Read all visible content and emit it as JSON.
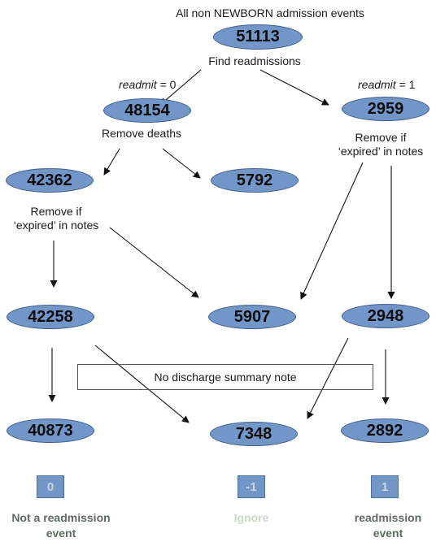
{
  "top": {
    "title": "All non NEWBORN admission events",
    "find_readmissions": "Find readmissions",
    "readmit_word": "readmit",
    "readmit0_value": " = 0",
    "readmit1_value": " = 1",
    "remove_deaths": "Remove deaths",
    "remove_expired_line1": "Remove if",
    "remove_expired_line2": "‘expired’ in notes"
  },
  "nodes": {
    "all": "51113",
    "r0": "48154",
    "r1": "2959",
    "alive": "42362",
    "dead": "5792",
    "left_mid": "42258",
    "center_mid": "5907",
    "right_mid": "2948",
    "left_bottom": "40873",
    "center_bottom": "7348",
    "right_bottom": "2892"
  },
  "box_label": "No discharge summary note",
  "categories": [
    {
      "badge": "0",
      "label_line1": "Not a readmission",
      "label_line2": "event",
      "color": "#5e6b5e"
    },
    {
      "badge": "-1",
      "label_line1": "Ignore",
      "label_line2": "",
      "color": "#c9d7c5"
    },
    {
      "badge": "1",
      "label_line1": "readmission",
      "label_line2": "event",
      "color": "#5e6b5e"
    }
  ],
  "colors": {
    "node_fill": "#7396c8",
    "node_border": "#3f5f8f",
    "arrow": "#111111"
  }
}
